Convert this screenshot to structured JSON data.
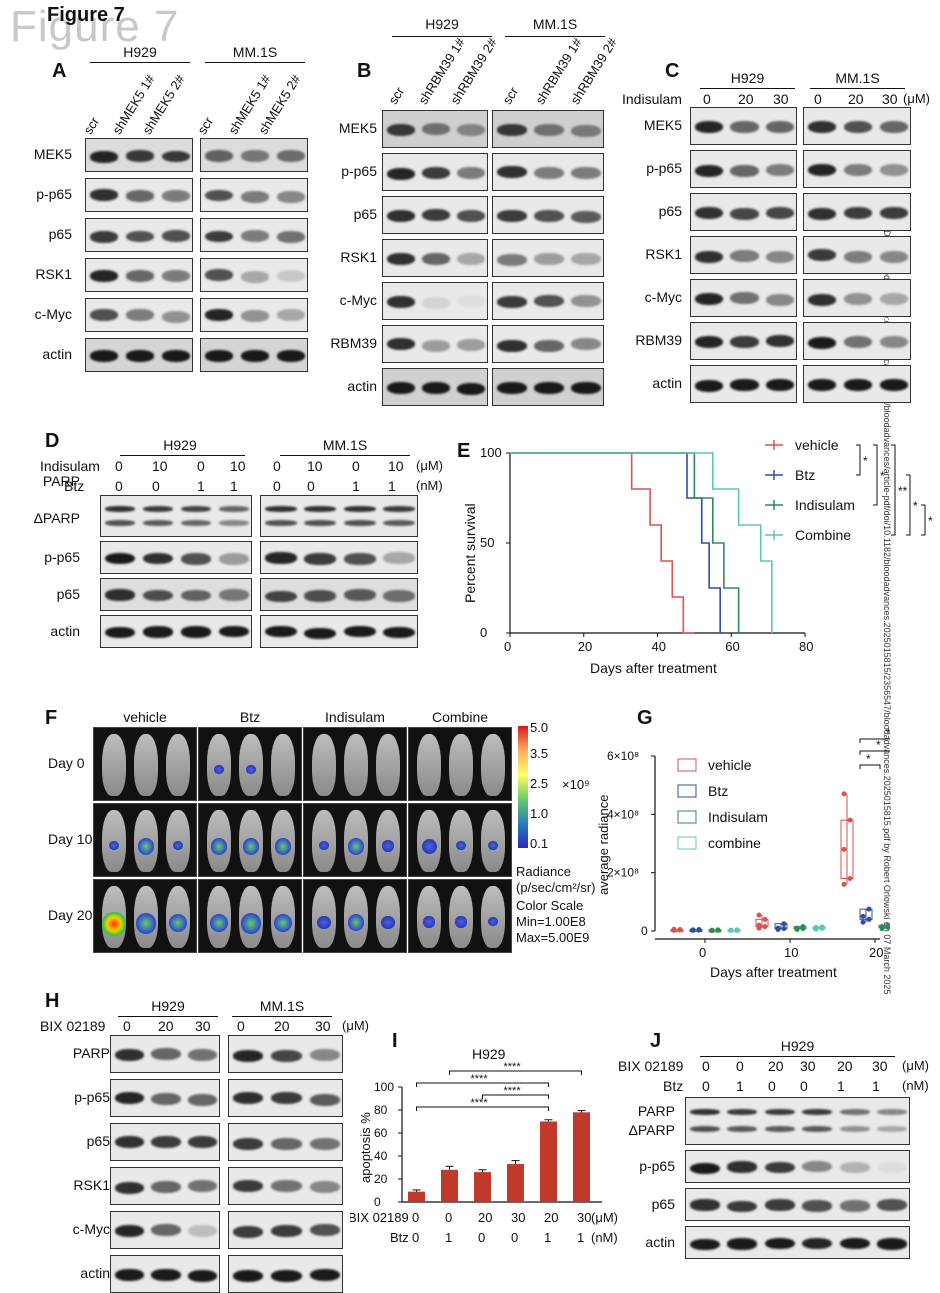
{
  "figure_title": "Figure 7",
  "figure_title_overlay": "Figure 7",
  "watermark": "Downloaded from http://ashpublications.org/bloodadvances/article-pdf/doi/10.1182/bloodadvances.2025015815/2356547/bloodadvances.2025015815.pdf by Robert Orlowski on 07 March 2025",
  "panelA": {
    "letter": "A",
    "cell_lines": [
      "H929",
      "MM.1S"
    ],
    "lanes": [
      "scr",
      "shMEK5 1#",
      "shMEK5 2#",
      "scr",
      "shMEK5 1#",
      "shMEK5 2#"
    ],
    "rows": [
      "MEK5",
      "p-p65",
      "p65",
      "RSK1",
      "c-Myc",
      "actin"
    ]
  },
  "panelB": {
    "letter": "B",
    "cell_lines": [
      "H929",
      "MM.1S"
    ],
    "lanes": [
      "scr",
      "shRBM39 1#",
      "shRBM39 2#",
      "scr",
      "shRBM39 1#",
      "shRBM39 2#"
    ],
    "rows": [
      "MEK5",
      "p-p65",
      "p65",
      "RSK1",
      "c-Myc",
      "RBM39",
      "actin"
    ]
  },
  "panelC": {
    "letter": "C",
    "cell_lines": [
      "H929",
      "MM.1S"
    ],
    "treatment_label": "Indisulam",
    "doses": [
      "0",
      "20",
      "30",
      "0",
      "20",
      "30"
    ],
    "unit": "(μM)",
    "rows": [
      "MEK5",
      "p-p65",
      "p65",
      "RSK1",
      "c-Myc",
      "RBM39",
      "actin"
    ]
  },
  "panelD": {
    "letter": "D",
    "cell_lines": [
      "H929",
      "MM.1S"
    ],
    "indisulam_label": "Indisulam",
    "indisulam": [
      "0",
      "10",
      "0",
      "10",
      "0",
      "10",
      "0",
      "10"
    ],
    "indisulam_unit": "(μM)",
    "btz_label": "Btz",
    "btz": [
      "0",
      "0",
      "1",
      "1",
      "0",
      "0",
      "1",
      "1"
    ],
    "btz_unit": "(nM)",
    "rows": [
      "PARP",
      "ΔPARP",
      "p-p65",
      "p65",
      "actin"
    ]
  },
  "panelF": {
    "letter": "F",
    "columns": [
      "vehicle",
      "Btz",
      "Indisulam",
      "Combine"
    ],
    "days": [
      "Day 0",
      "Day 10",
      "Day 20"
    ],
    "scale_ticks": [
      "5.0",
      "3.5",
      "2.5",
      "1.0",
      "0.1"
    ],
    "scale_multiplier": "×10⁹",
    "radiance_label": "Radiance",
    "radiance_unit": "(p/sec/cm²/sr)",
    "color_scale_label": "Color Scale",
    "scale_min": "Min=1.00E8",
    "scale_max": "Max=5.00E9"
  },
  "panelH": {
    "letter": "H",
    "cell_lines": [
      "H929",
      "MM.1S"
    ],
    "treatment_label": "BIX 02189",
    "doses": [
      "0",
      "20",
      "30",
      "0",
      "20",
      "30"
    ],
    "unit": "(μM)",
    "rows": [
      "PARP",
      "p-p65",
      "p65",
      "RSK1",
      "c-Myc",
      "actin"
    ]
  },
  "panelJ": {
    "letter": "J",
    "cell_line": "H929",
    "bix_label": "BIX 02189",
    "bix": [
      "0",
      "0",
      "20",
      "30",
      "20",
      "30"
    ],
    "bix_unit": "(μM)",
    "btz_label": "Btz",
    "btz": [
      "0",
      "1",
      "0",
      "0",
      "1",
      "1"
    ],
    "btz_unit": "(nM)",
    "rows": [
      "PARP",
      "ΔPARP",
      "p-p65",
      "p65",
      "actin"
    ]
  },
  "colors": {
    "vehicle": "#d9534f",
    "btz": "#2f4fa0",
    "indisulam": "#2e8b57",
    "combine": "#5cc8b0",
    "bar": "#c0392b"
  },
  "chart_data": [
    {
      "panel": "E",
      "type": "line",
      "subtype": "kaplan-meier",
      "xlabel": "Days after treatment",
      "ylabel": "Percent survival",
      "xlim": [
        0,
        80
      ],
      "ylim": [
        0,
        100
      ],
      "xticks": [
        "0",
        "20",
        "40",
        "60",
        "80"
      ],
      "yticks": [
        "0",
        "50",
        "100"
      ],
      "legend_position": "right",
      "series": [
        {
          "name": "vehicle",
          "color_key": "vehicle",
          "x": [
            0,
            33,
            33,
            38,
            38,
            41,
            41,
            44,
            44,
            47,
            47,
            50,
            50
          ],
          "y": [
            100,
            100,
            80,
            80,
            60,
            60,
            40,
            40,
            20,
            20,
            0,
            0,
            0
          ]
        },
        {
          "name": "Btz",
          "color_key": "btz",
          "x": [
            0,
            48,
            48,
            52,
            52,
            54,
            54,
            57,
            57
          ],
          "y": [
            100,
            100,
            75,
            75,
            50,
            50,
            25,
            25,
            0
          ]
        },
        {
          "name": "Indisulam",
          "color_key": "indisulam",
          "x": [
            0,
            50,
            50,
            55,
            55,
            58,
            58,
            62,
            62
          ],
          "y": [
            100,
            100,
            75,
            75,
            50,
            50,
            25,
            25,
            0
          ]
        },
        {
          "name": "Combine",
          "color_key": "combine",
          "x": [
            0,
            55,
            55,
            62,
            62,
            68,
            68,
            71,
            71
          ],
          "y": [
            100,
            100,
            80,
            80,
            60,
            60,
            40,
            40,
            0
          ]
        }
      ],
      "significance": [
        "*",
        "*",
        "**",
        "*",
        "*"
      ]
    },
    {
      "panel": "G",
      "type": "scatter",
      "subtype": "box",
      "xlabel": "Days after treatment",
      "ylabel": "average radiance",
      "xticks": [
        "0",
        "10",
        "20"
      ],
      "yticks": [
        "0",
        "2×10⁸",
        "4×10⁸",
        "6×10⁸"
      ],
      "ylim": [
        0,
        600000000
      ],
      "legend_position": "top-left",
      "groups": [
        "vehicle",
        "Btz",
        "Indisulam",
        "combine"
      ],
      "series": [
        {
          "name": "vehicle",
          "color_key": "vehicle",
          "day0": [
            3000000,
            6000000,
            2000000,
            4000000,
            5000000
          ],
          "day10": [
            20000000,
            40000000,
            55000000,
            10000000,
            15000000
          ],
          "day20": [
            470000000,
            380000000,
            280000000,
            180000000,
            160000000
          ]
        },
        {
          "name": "Btz",
          "color_key": "btz",
          "day0": [
            3000000,
            2000000,
            4000000,
            5000000
          ],
          "day10": [
            5000000,
            10000000,
            25000000,
            8000000
          ],
          "day20": [
            75000000,
            40000000,
            30000000,
            50000000
          ]
        },
        {
          "name": "Indisulam",
          "color_key": "indisulam",
          "day0": [
            2000000,
            3000000,
            1000000,
            4000000
          ],
          "day10": [
            5000000,
            10000000,
            15000000,
            8000000
          ],
          "day20": [
            8000000,
            20000000,
            15000000,
            12000000
          ]
        },
        {
          "name": "combine",
          "color_key": "combine",
          "day0": [
            2000000,
            3000000,
            2000000,
            4000000
          ],
          "day10": [
            6000000,
            12000000,
            9000000,
            14000000
          ],
          "day20": [
            10000000,
            18000000,
            12000000,
            16000000
          ]
        }
      ],
      "significance": [
        "*",
        "*",
        "**"
      ]
    },
    {
      "panel": "I",
      "type": "bar",
      "title": "H929",
      "ylabel": "apoptosis %",
      "ylim": [
        0,
        100
      ],
      "yticks": [
        "0",
        "20",
        "40",
        "60",
        "80",
        "100"
      ],
      "row_labels": [
        "BIX 02189",
        "Btz"
      ],
      "units": [
        "(μM)",
        "(nM)"
      ],
      "bix": [
        "0",
        "0",
        "20",
        "30",
        "20",
        "30"
      ],
      "btz": [
        "0",
        "1",
        "0",
        "0",
        "1",
        "1"
      ],
      "values": [
        9,
        28,
        26,
        33,
        70,
        78
      ],
      "errors": [
        1.5,
        3,
        2,
        3,
        1.5,
        1.5
      ],
      "significance": [
        "****",
        "****",
        "****",
        "****"
      ]
    }
  ]
}
